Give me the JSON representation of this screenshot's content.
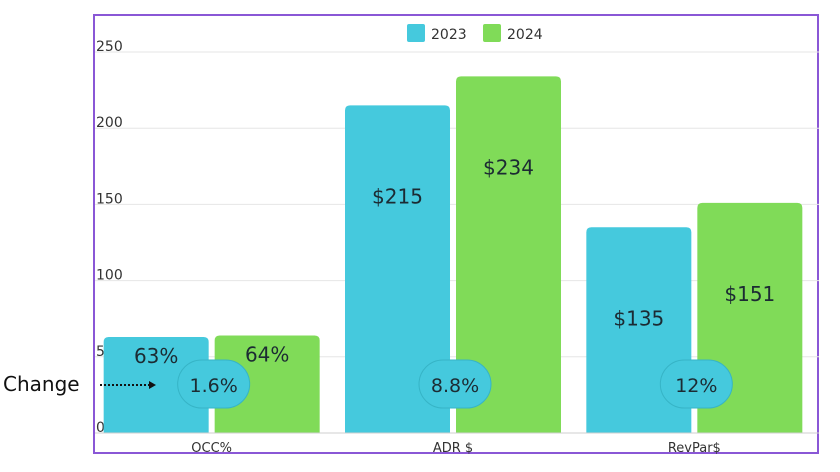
{
  "chart_data": {
    "type": "bar",
    "categories": [
      "OCC%",
      "ADR $",
      "RevPar$"
    ],
    "series": [
      {
        "name": "2023",
        "values": [
          63,
          215,
          135
        ],
        "labels": [
          "63%",
          "$215",
          "$135"
        ],
        "color": "#45c9dd"
      },
      {
        "name": "2024",
        "values": [
          64,
          234,
          151
        ],
        "labels": [
          "64%",
          "$234",
          "$151"
        ],
        "color": "#80db58"
      }
    ],
    "change_labels": [
      "1.6%",
      "8.8%",
      "12%"
    ],
    "change_title": "Change",
    "ylim": [
      0,
      250
    ],
    "yticks": [
      0,
      50,
      100,
      150,
      200,
      250
    ],
    "grid": true,
    "legend_position": "top-center",
    "title": "",
    "xlabel": "",
    "ylabel": ""
  },
  "colors": {
    "frame": "#8a57d6",
    "bubble": "#45c9dd",
    "bubble_stroke": "#36b4c6"
  }
}
